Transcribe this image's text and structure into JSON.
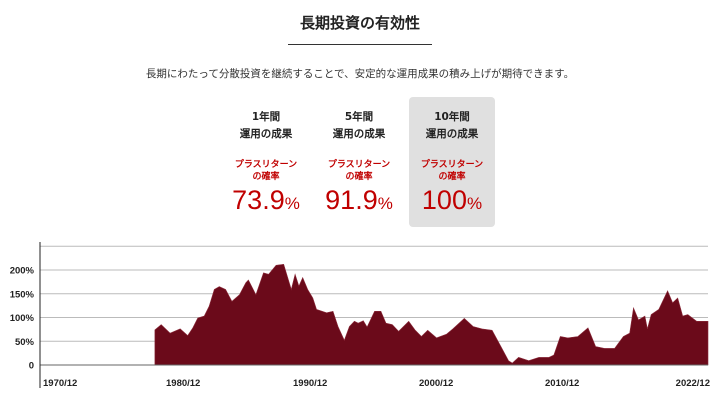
{
  "header": {
    "title": "長期投資の有効性",
    "lead": "長期にわたって分散投資を継続することで、安定的な運用成果の積み上げが期待できます。"
  },
  "cards": [
    {
      "period": "1年間",
      "subtitle": "運用の成果",
      "label1": "プラスリターン",
      "label2": "の確率",
      "value": "73.9",
      "unit": "%",
      "highlighted": false
    },
    {
      "period": "5年間",
      "subtitle": "運用の成果",
      "label1": "プラスリターン",
      "label2": "の確率",
      "value": "91.9",
      "unit": "%",
      "highlighted": false
    },
    {
      "period": "10年間",
      "subtitle": "運用の成果",
      "label1": "プラスリターン",
      "label2": "の確率",
      "value": "100",
      "unit": "%",
      "highlighted": true
    }
  ],
  "colors": {
    "accent": "#c00000",
    "area": "#6b0a1a",
    "highlight_bg": "#e0e0e0"
  },
  "chart_data": {
    "type": "area",
    "title": "",
    "xlabel": "",
    "ylabel": "",
    "x_ticks": [
      "1970/12",
      "1980/12",
      "1990/12",
      "2000/12",
      "2010/12",
      "2022/12"
    ],
    "y_ticks": [
      "0",
      "50%",
      "100%",
      "150%",
      "200%"
    ],
    "ylim": [
      0,
      250
    ],
    "xlim": [
      1970.9,
      2023.8
    ],
    "grid": true,
    "series": [
      {
        "x": [
          1980.0,
          1980.5,
          1981.2,
          1982.0,
          1982.6,
          1983.0,
          1983.4,
          1983.9,
          1984.3,
          1984.7,
          1985.1,
          1985.6,
          1986.1,
          1986.7,
          1987.2,
          1987.4,
          1988.0,
          1988.6,
          1989.0,
          1989.6,
          1990.2,
          1990.8,
          1991.1,
          1991.4,
          1991.7,
          1992.1,
          1992.5,
          1992.8,
          1993.6,
          1994.1,
          1994.5,
          1995.0,
          1995.4,
          1995.8,
          1996.1,
          1996.5,
          1996.8,
          1997.4,
          1997.9,
          1998.3,
          1998.8,
          1999.3,
          2000.1,
          2000.6,
          2001.1,
          2001.6,
          2002.3,
          2003.1,
          2003.6,
          2004.5,
          2005.2,
          2005.9,
          2006.7,
          2007.4,
          2008.0,
          2008.3,
          2008.8,
          2009.6,
          2010.4,
          2011.2,
          2011.6,
          2012.1,
          2012.7,
          2013.5,
          2014.3,
          2014.9,
          2015.6,
          2016.4,
          2017.1,
          2017.6,
          2017.9,
          2018.3,
          2018.8,
          2019.0,
          2019.3,
          2019.9,
          2020.6,
          2021.0,
          2021.4,
          2021.8,
          2022.2,
          2022.9
        ],
        "y": [
          74,
          85,
          67,
          76,
          62,
          78,
          99,
          103,
          124,
          159,
          165,
          159,
          134,
          148,
          173,
          179,
          148,
          194,
          191,
          210,
          212,
          159,
          191,
          166,
          184,
          159,
          141,
          117,
          110,
          113,
          81,
          52,
          81,
          92,
          88,
          93,
          80,
          113,
          113,
          88,
          85,
          71,
          92,
          74,
          60,
          73,
          57,
          65,
          76,
          98,
          81,
          76,
          73,
          39,
          9,
          4,
          16,
          9,
          16,
          16,
          21,
          60,
          57,
          60,
          78,
          39,
          35,
          35,
          60,
          67,
          120,
          95,
          103,
          76,
          106,
          117,
          156,
          131,
          141,
          103,
          106,
          92
        ]
      }
    ]
  }
}
